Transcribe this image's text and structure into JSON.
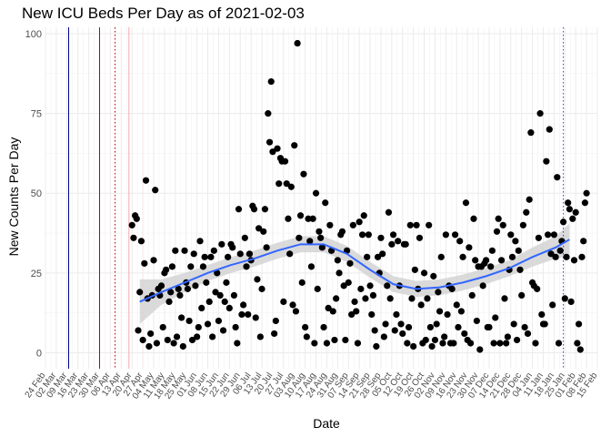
{
  "chart_data": {
    "type": "scatter",
    "title": "New ICU Beds Per Day as of 2021-02-03",
    "xlabel": "Date",
    "ylabel": "New Counts Per Day",
    "ylim": [
      -5,
      102
    ],
    "yticks": [
      0,
      25,
      50,
      75,
      100
    ],
    "x_start": "2020-02-24",
    "x_end": "2021-02-15",
    "x_tick_labels": [
      "24 Feb",
      "02 Mar",
      "09 Mar",
      "16 Mar",
      "23 Mar",
      "30 Mar",
      "06 Apr",
      "13 Apr",
      "20 Apr",
      "27 Apr",
      "04 May",
      "11 May",
      "18 May",
      "25 May",
      "01 Jun",
      "08 Jun",
      "15 Jun",
      "22 Jun",
      "29 Jun",
      "06 Jul",
      "13 Jul",
      "20 Jul",
      "27 Jul",
      "03 Aug",
      "10 Aug",
      "17 Aug",
      "24 Aug",
      "31 Aug",
      "07 Sep",
      "14 Sep",
      "21 Sep",
      "28 Sep",
      "05 Oct",
      "12 Oct",
      "19 Oct",
      "26 Oct",
      "02 Nov",
      "09 Nov",
      "16 Nov",
      "23 Nov",
      "30 Nov",
      "07 Dec",
      "14 Dec",
      "21 Dec",
      "28 Dec",
      "04 Jan",
      "11 Jan",
      "18 Jan",
      "25 Jan",
      "01 Feb",
      "08 Feb",
      "15 Feb"
    ],
    "reference_lines": [
      {
        "day": 15,
        "color": "#00008b",
        "style": "solid"
      },
      {
        "day": 35,
        "color": "#c00000",
        "style": "solid"
      },
      {
        "day": 45,
        "color": "#c00000",
        "style": "dotted"
      },
      {
        "day": 54,
        "color": "#f4a6b0",
        "style": "solid"
      },
      {
        "day": 335,
        "color": "#3333ff",
        "style": "dotted"
      }
    ],
    "trend": {
      "color": "#3366ff",
      "band_color": "#d3d3d3",
      "points": [
        {
          "day": 61,
          "y": 16,
          "lo": 9,
          "hi": 23
        },
        {
          "day": 75,
          "y": 19,
          "lo": 15,
          "hi": 23
        },
        {
          "day": 90,
          "y": 22,
          "lo": 19,
          "hi": 25
        },
        {
          "day": 105,
          "y": 25,
          "lo": 22.5,
          "hi": 27.5
        },
        {
          "day": 120,
          "y": 27.5,
          "lo": 25,
          "hi": 30
        },
        {
          "day": 135,
          "y": 29.5,
          "lo": 27,
          "hi": 32
        },
        {
          "day": 150,
          "y": 32,
          "lo": 29.5,
          "hi": 34.5
        },
        {
          "day": 165,
          "y": 34,
          "lo": 31.5,
          "hi": 36.5
        },
        {
          "day": 180,
          "y": 34,
          "lo": 31.5,
          "hi": 36.5
        },
        {
          "day": 195,
          "y": 31,
          "lo": 28.5,
          "hi": 33.5
        },
        {
          "day": 210,
          "y": 26,
          "lo": 23.5,
          "hi": 28.5
        },
        {
          "day": 225,
          "y": 21.5,
          "lo": 19,
          "hi": 24
        },
        {
          "day": 240,
          "y": 20,
          "lo": 17.5,
          "hi": 22.5
        },
        {
          "day": 255,
          "y": 20.5,
          "lo": 18,
          "hi": 23
        },
        {
          "day": 270,
          "y": 22,
          "lo": 19.5,
          "hi": 24.5
        },
        {
          "day": 285,
          "y": 24,
          "lo": 21.5,
          "hi": 26.5
        },
        {
          "day": 300,
          "y": 26.5,
          "lo": 24,
          "hi": 29
        },
        {
          "day": 315,
          "y": 30,
          "lo": 27,
          "hi": 33
        },
        {
          "day": 330,
          "y": 33,
          "lo": 29.5,
          "hi": 36.5
        },
        {
          "day": 339,
          "y": 35.5,
          "lo": 30.5,
          "hi": 40.5
        }
      ]
    },
    "points": [
      [
        56,
        40
      ],
      [
        57,
        36
      ],
      [
        58,
        43
      ],
      [
        59,
        42
      ],
      [
        60,
        7
      ],
      [
        61,
        19
      ],
      [
        62,
        35
      ],
      [
        63,
        4
      ],
      [
        64,
        28
      ],
      [
        65,
        54
      ],
      [
        66,
        17
      ],
      [
        67,
        2
      ],
      [
        68,
        6
      ],
      [
        69,
        18
      ],
      [
        70,
        29
      ],
      [
        71,
        51
      ],
      [
        72,
        3
      ],
      [
        73,
        20
      ],
      [
        74,
        18
      ],
      [
        75,
        21
      ],
      [
        76,
        8
      ],
      [
        77,
        25
      ],
      [
        78,
        26
      ],
      [
        79,
        4
      ],
      [
        80,
        16
      ],
      [
        81,
        19
      ],
      [
        82,
        27
      ],
      [
        83,
        3
      ],
      [
        84,
        32
      ],
      [
        85,
        5
      ],
      [
        86,
        20
      ],
      [
        87,
        18
      ],
      [
        88,
        11
      ],
      [
        89,
        2
      ],
      [
        90,
        32
      ],
      [
        91,
        22
      ],
      [
        92,
        20
      ],
      [
        93,
        10
      ],
      [
        94,
        27
      ],
      [
        95,
        4
      ],
      [
        96,
        31
      ],
      [
        97,
        21
      ],
      [
        98,
        5
      ],
      [
        99,
        8
      ],
      [
        100,
        35
      ],
      [
        101,
        14
      ],
      [
        102,
        27
      ],
      [
        103,
        30
      ],
      [
        104,
        22
      ],
      [
        105,
        9
      ],
      [
        106,
        16
      ],
      [
        107,
        30
      ],
      [
        108,
        5
      ],
      [
        109,
        32
      ],
      [
        110,
        19
      ],
      [
        111,
        25
      ],
      [
        112,
        10
      ],
      [
        113,
        18
      ],
      [
        114,
        34
      ],
      [
        115,
        7
      ],
      [
        116,
        16
      ],
      [
        117,
        22
      ],
      [
        118,
        30
      ],
      [
        119,
        14
      ],
      [
        120,
        34
      ],
      [
        121,
        33
      ],
      [
        122,
        18
      ],
      [
        123,
        8
      ],
      [
        124,
        3
      ],
      [
        125,
        45
      ],
      [
        126,
        31
      ],
      [
        127,
        12
      ],
      [
        128,
        15
      ],
      [
        129,
        36
      ],
      [
        130,
        27
      ],
      [
        131,
        12
      ],
      [
        132,
        31
      ],
      [
        133,
        29
      ],
      [
        134,
        46
      ],
      [
        135,
        45
      ],
      [
        136,
        11
      ],
      [
        137,
        23
      ],
      [
        138,
        39
      ],
      [
        139,
        5
      ],
      [
        140,
        20
      ],
      [
        141,
        38
      ],
      [
        142,
        45
      ],
      [
        143,
        33
      ],
      [
        144,
        75
      ],
      [
        145,
        66
      ],
      [
        146,
        85
      ],
      [
        147,
        63
      ],
      [
        148,
        6
      ],
      [
        149,
        10
      ],
      [
        150,
        64
      ],
      [
        151,
        53
      ],
      [
        152,
        61
      ],
      [
        153,
        60
      ],
      [
        154,
        16
      ],
      [
        155,
        60
      ],
      [
        156,
        53
      ],
      [
        157,
        42
      ],
      [
        158,
        31
      ],
      [
        159,
        52
      ],
      [
        160,
        15
      ],
      [
        161,
        65
      ],
      [
        162,
        13
      ],
      [
        163,
        97
      ],
      [
        164,
        36
      ],
      [
        165,
        43
      ],
      [
        166,
        22
      ],
      [
        167,
        56
      ],
      [
        168,
        8
      ],
      [
        169,
        5
      ],
      [
        170,
        42
      ],
      [
        171,
        35
      ],
      [
        172,
        27
      ],
      [
        173,
        42
      ],
      [
        174,
        3
      ],
      [
        175,
        50
      ],
      [
        176,
        20
      ],
      [
        177,
        38
      ],
      [
        178,
        36
      ],
      [
        179,
        33
      ],
      [
        180,
        8
      ],
      [
        181,
        47
      ],
      [
        182,
        3
      ],
      [
        183,
        14
      ],
      [
        184,
        40
      ],
      [
        185,
        32
      ],
      [
        186,
        13
      ],
      [
        187,
        4
      ],
      [
        188,
        17
      ],
      [
        189,
        29
      ],
      [
        190,
        25
      ],
      [
        191,
        37
      ],
      [
        192,
        38
      ],
      [
        193,
        21
      ],
      [
        194,
        4
      ],
      [
        195,
        32
      ],
      [
        196,
        22
      ],
      [
        197,
        28
      ],
      [
        198,
        12
      ],
      [
        199,
        40
      ],
      [
        200,
        16
      ],
      [
        201,
        13
      ],
      [
        202,
        3
      ],
      [
        203,
        41
      ],
      [
        204,
        20
      ],
      [
        205,
        37
      ],
      [
        206,
        43
      ],
      [
        207,
        17
      ],
      [
        208,
        30
      ],
      [
        209,
        37
      ],
      [
        210,
        21
      ],
      [
        211,
        12
      ],
      [
        212,
        18
      ],
      [
        213,
        7
      ],
      [
        214,
        2
      ],
      [
        215,
        30
      ],
      [
        216,
        25
      ],
      [
        217,
        36
      ],
      [
        218,
        31
      ],
      [
        219,
        5
      ],
      [
        220,
        9
      ],
      [
        221,
        21
      ],
      [
        222,
        44
      ],
      [
        223,
        17
      ],
      [
        224,
        34
      ],
      [
        225,
        37
      ],
      [
        226,
        7
      ],
      [
        227,
        12
      ],
      [
        228,
        35
      ],
      [
        229,
        21
      ],
      [
        230,
        9
      ],
      [
        231,
        6
      ],
      [
        232,
        34
      ],
      [
        233,
        34
      ],
      [
        234,
        3
      ],
      [
        235,
        8
      ],
      [
        236,
        40
      ],
      [
        237,
        17
      ],
      [
        238,
        2
      ],
      [
        239,
        26
      ],
      [
        240,
        40
      ],
      [
        241,
        20
      ],
      [
        242,
        36
      ],
      [
        243,
        15
      ],
      [
        244,
        3
      ],
      [
        245,
        25
      ],
      [
        246,
        4
      ],
      [
        247,
        17
      ],
      [
        248,
        40
      ],
      [
        249,
        8
      ],
      [
        250,
        2
      ],
      [
        251,
        24
      ],
      [
        252,
        4
      ],
      [
        253,
        9
      ],
      [
        254,
        19
      ],
      [
        255,
        13
      ],
      [
        256,
        30
      ],
      [
        257,
        3
      ],
      [
        258,
        5
      ],
      [
        259,
        37
      ],
      [
        260,
        12
      ],
      [
        261,
        21
      ],
      [
        262,
        3
      ],
      [
        263,
        20
      ],
      [
        264,
        3
      ],
      [
        265,
        37
      ],
      [
        266,
        15
      ],
      [
        267,
        8
      ],
      [
        268,
        35
      ],
      [
        269,
        13
      ],
      [
        270,
        30
      ],
      [
        271,
        6
      ],
      [
        272,
        47
      ],
      [
        273,
        4
      ],
      [
        274,
        33
      ],
      [
        275,
        3
      ],
      [
        276,
        18
      ],
      [
        277,
        42
      ],
      [
        278,
        29
      ],
      [
        279,
        10
      ],
      [
        280,
        27
      ],
      [
        281,
        1
      ],
      [
        282,
        27
      ],
      [
        283,
        21
      ],
      [
        284,
        28
      ],
      [
        285,
        29
      ],
      [
        286,
        8
      ],
      [
        287,
        8
      ],
      [
        288,
        27
      ],
      [
        289,
        32
      ],
      [
        290,
        3
      ],
      [
        291,
        11
      ],
      [
        292,
        38
      ],
      [
        293,
        42
      ],
      [
        294,
        3
      ],
      [
        295,
        29
      ],
      [
        296,
        40
      ],
      [
        297,
        17
      ],
      [
        298,
        3
      ],
      [
        299,
        5
      ],
      [
        300,
        26
      ],
      [
        301,
        37
      ],
      [
        302,
        30
      ],
      [
        303,
        9
      ],
      [
        304,
        35
      ],
      [
        305,
        4
      ],
      [
        306,
        32
      ],
      [
        307,
        26
      ],
      [
        308,
        18
      ],
      [
        309,
        40
      ],
      [
        310,
        8
      ],
      [
        311,
        44
      ],
      [
        312,
        6
      ],
      [
        313,
        48
      ],
      [
        314,
        69
      ],
      [
        315,
        22
      ],
      [
        316,
        21
      ],
      [
        317,
        3
      ],
      [
        318,
        20
      ],
      [
        319,
        36
      ],
      [
        320,
        75
      ],
      [
        321,
        12
      ],
      [
        322,
        9
      ],
      [
        323,
        9
      ],
      [
        324,
        60
      ],
      [
        325,
        37
      ],
      [
        326,
        70
      ],
      [
        327,
        31
      ],
      [
        328,
        15
      ],
      [
        329,
        37
      ],
      [
        330,
        30
      ],
      [
        331,
        55
      ],
      [
        332,
        3
      ],
      [
        333,
        32
      ],
      [
        334,
        35
      ],
      [
        335,
        41
      ],
      [
        336,
        17
      ],
      [
        337,
        30
      ],
      [
        338,
        47
      ],
      [
        339,
        45
      ],
      [
        340,
        16
      ],
      [
        341,
        42
      ],
      [
        342,
        29
      ],
      [
        343,
        44
      ],
      [
        344,
        3
      ],
      [
        345,
        9
      ],
      [
        346,
        1
      ],
      [
        347,
        30
      ],
      [
        348,
        35
      ],
      [
        349,
        47
      ],
      [
        350,
        50
      ]
    ]
  }
}
